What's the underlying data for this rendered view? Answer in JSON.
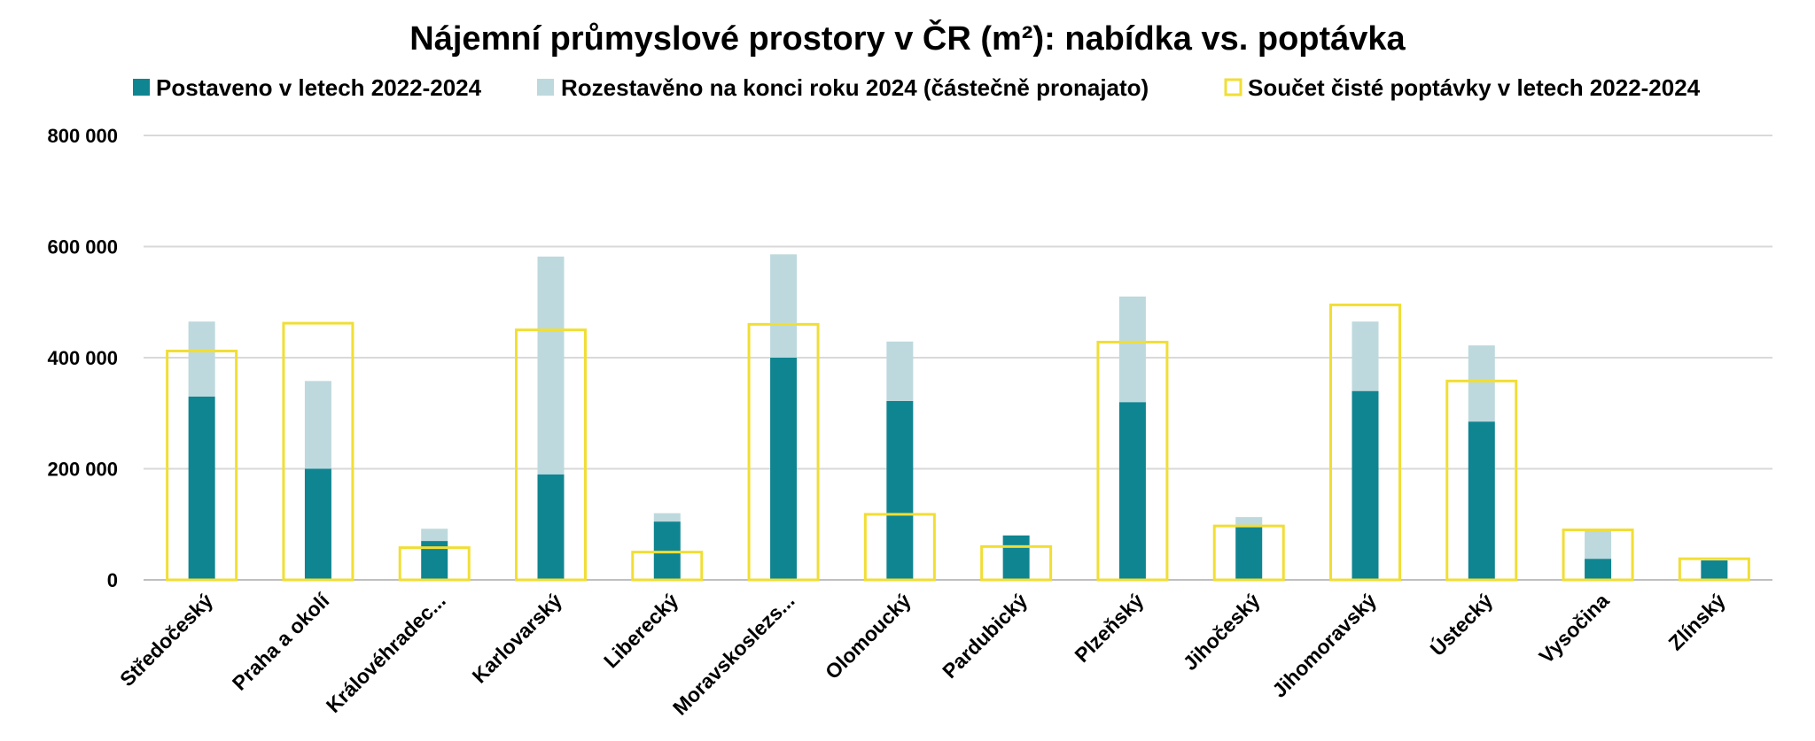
{
  "chart_data": {
    "type": "bar",
    "title": "Nájemní průmyslové prostory v ČR (m²): nabídka vs. poptávka",
    "categories": [
      "Středočeský",
      "Praha a okolí",
      "Královéhradec...",
      "Karlovarský",
      "Liberecký",
      "Moravskoslezs...",
      "Olomoucký",
      "Pardubický",
      "Plzeňský",
      "Jihočeský",
      "Jihomoravský",
      "Ústecký",
      "Vysočina",
      "Zlínský"
    ],
    "series": [
      {
        "name": "Postaveno v letech 2022-2024",
        "color": "#0f8591",
        "stacked": true,
        "values": [
          330000,
          200000,
          70000,
          190000,
          105000,
          400000,
          322000,
          80000,
          320000,
          95000,
          340000,
          285000,
          38000,
          35000
        ]
      },
      {
        "name": "Rozestavěno na konci roku 2024 (částečně pronajato)",
        "color": "#bdd9dd",
        "stacked": true,
        "values": [
          135000,
          158000,
          22000,
          392000,
          15000,
          186000,
          107000,
          0,
          190000,
          18000,
          125000,
          137000,
          52000,
          0
        ]
      },
      {
        "name": "Součet čisté poptávky v letech 2022-2024",
        "color": "#f1de35",
        "style": "outline",
        "values": [
          412000,
          462000,
          58000,
          450000,
          50000,
          460000,
          118000,
          60000,
          428000,
          97000,
          495000,
          358000,
          90000,
          38000
        ]
      }
    ],
    "yticks": [
      "800 000",
      "600 000",
      "400 000",
      "200 000",
      "0"
    ],
    "ylim": [
      0,
      800000
    ],
    "grid": true,
    "legend": "top"
  }
}
